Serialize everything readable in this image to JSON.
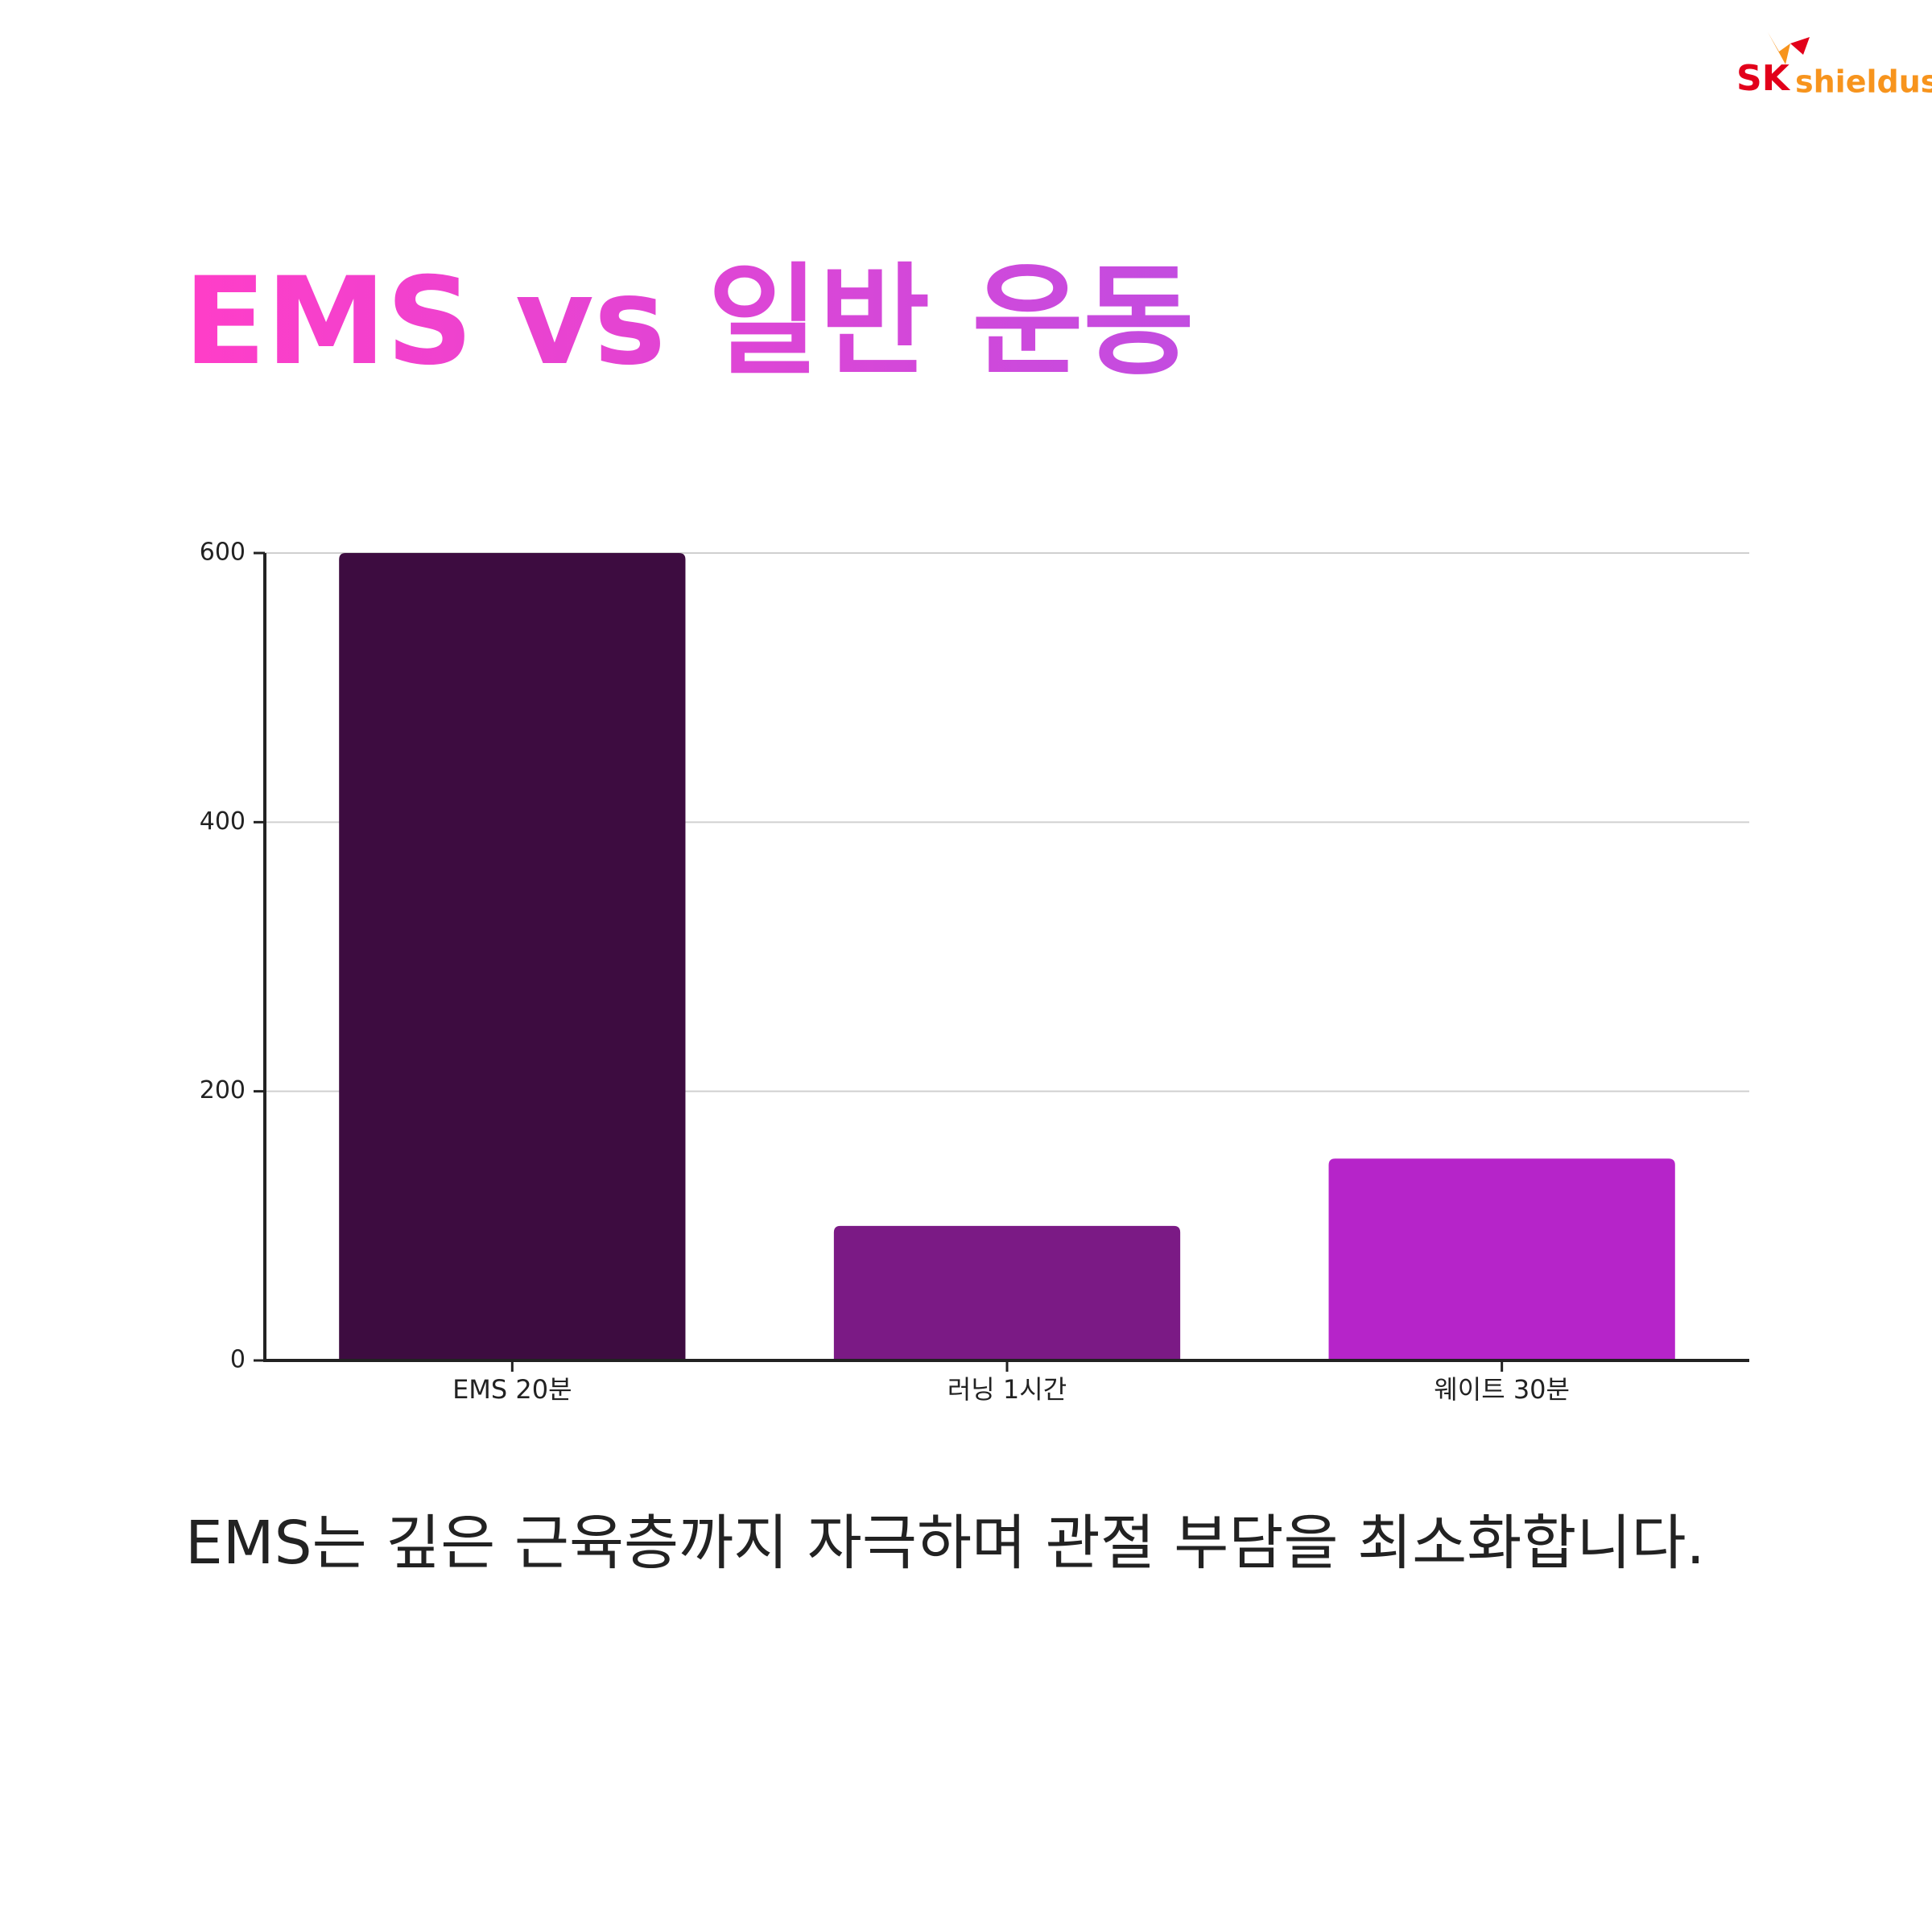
{
  "logo": {
    "sk": "SK",
    "name": "shieldus"
  },
  "chart_data": {
    "type": "bar",
    "title": "EMS vs 일반 운동",
    "categories": [
      "EMS 20분",
      "러닝 1시간",
      "웨이트 30분"
    ],
    "values": [
      600,
      100,
      150
    ],
    "colors": [
      "#3d0c40",
      "#7b1a85",
      "#b624c9"
    ],
    "ylim": [
      0,
      600
    ],
    "yticks": [
      0,
      200,
      400,
      600
    ],
    "grid": true
  },
  "caption": "EMS는 깊은 근육층까지 자극하며 관절 부담을 최소화합니다."
}
